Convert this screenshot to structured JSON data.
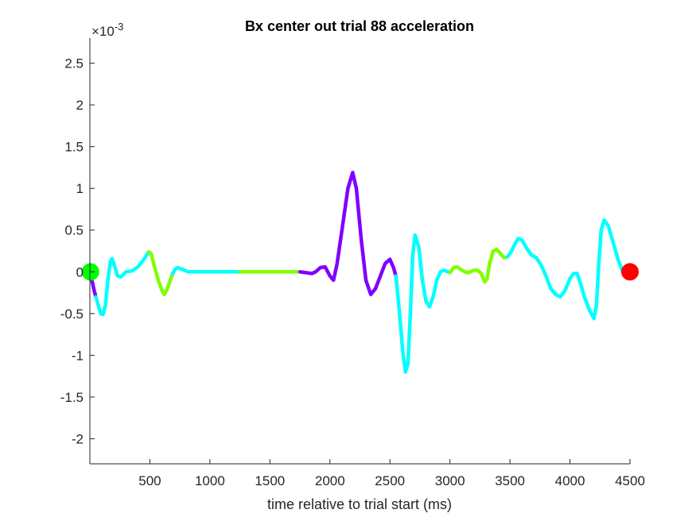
{
  "chart_data": {
    "type": "line",
    "title": "Bx  center out trial 88 acceleration",
    "xlabel": "time relative to trial start (ms)",
    "ylabel": "",
    "y_exponent_base": "×10",
    "y_exponent_power": "-3",
    "xlim": [
      0,
      4500
    ],
    "ylim": [
      -2.3,
      2.8
    ],
    "x_ticks": [
      500,
      1000,
      1500,
      2000,
      2500,
      3000,
      3500,
      4000,
      4500
    ],
    "y_ticks": [
      -2,
      -1.5,
      -1,
      -0.5,
      0,
      0.5,
      1,
      1.5,
      2,
      2.5
    ],
    "y_tick_labels": [
      "-2",
      "-1.5",
      "-1",
      "-0.5",
      "0",
      "0.5",
      "1",
      "1.5",
      "2",
      "2.5"
    ],
    "x_tick_labels": [
      "500",
      "1000",
      "1500",
      "2000",
      "2500",
      "3000",
      "3500",
      "4000",
      "4500"
    ],
    "grid": false,
    "colors": {
      "purple": "#7f00ff",
      "cyan": "#00ffff",
      "green": "#80ff00",
      "start_marker": "#00ff00",
      "end_marker": "#ff0000"
    },
    "series": [
      {
        "color_key": "purple",
        "points": [
          [
            5,
            -0.05
          ],
          [
            20,
            -0.12
          ],
          [
            35,
            -0.22
          ],
          [
            50,
            -0.3
          ]
        ]
      },
      {
        "color_key": "cyan",
        "points": [
          [
            50,
            -0.3
          ],
          [
            70,
            -0.4
          ],
          [
            90,
            -0.5
          ],
          [
            110,
            -0.51
          ],
          [
            130,
            -0.4
          ],
          [
            150,
            -0.1
          ],
          [
            170,
            0.12
          ],
          [
            185,
            0.16
          ],
          [
            200,
            0.1
          ],
          [
            230,
            -0.05
          ],
          [
            260,
            -0.06
          ],
          [
            300,
            0.0
          ],
          [
            350,
            0.01
          ],
          [
            400,
            0.06
          ],
          [
            450,
            0.15
          ],
          [
            490,
            0.24
          ]
        ]
      },
      {
        "color_key": "green",
        "points": [
          [
            490,
            0.24
          ],
          [
            510,
            0.22
          ],
          [
            540,
            0.05
          ],
          [
            570,
            -0.1
          ],
          [
            600,
            -0.22
          ],
          [
            620,
            -0.27
          ],
          [
            640,
            -0.22
          ],
          [
            670,
            -0.1
          ],
          [
            690,
            -0.02
          ]
        ]
      },
      {
        "color_key": "cyan",
        "points": [
          [
            690,
            -0.02
          ],
          [
            710,
            0.03
          ],
          [
            730,
            0.05
          ],
          [
            770,
            0.03
          ],
          [
            820,
            0.0
          ],
          [
            900,
            0.0
          ],
          [
            1000,
            0.0
          ],
          [
            1100,
            0.0
          ],
          [
            1200,
            0.0
          ],
          [
            1250,
            0.0
          ]
        ]
      },
      {
        "color_key": "green",
        "points": [
          [
            1250,
            0.0
          ],
          [
            1400,
            0.0
          ],
          [
            1550,
            0.0
          ],
          [
            1750,
            0.0
          ]
        ]
      },
      {
        "color_key": "purple",
        "points": [
          [
            1750,
            0.0
          ],
          [
            1800,
            -0.01
          ],
          [
            1850,
            -0.02
          ],
          [
            1880,
            0.0
          ],
          [
            1920,
            0.05
          ],
          [
            1960,
            0.06
          ],
          [
            2000,
            -0.05
          ],
          [
            2030,
            -0.1
          ],
          [
            2060,
            0.1
          ],
          [
            2100,
            0.5
          ],
          [
            2150,
            1.0
          ],
          [
            2190,
            1.19
          ],
          [
            2220,
            1.0
          ],
          [
            2260,
            0.4
          ],
          [
            2300,
            -0.1
          ],
          [
            2340,
            -0.27
          ],
          [
            2380,
            -0.2
          ],
          [
            2420,
            -0.05
          ],
          [
            2460,
            0.1
          ],
          [
            2500,
            0.15
          ],
          [
            2530,
            0.05
          ],
          [
            2550,
            -0.05
          ]
        ]
      },
      {
        "color_key": "cyan",
        "points": [
          [
            2550,
            -0.05
          ],
          [
            2580,
            -0.5
          ],
          [
            2610,
            -1.0
          ],
          [
            2630,
            -1.2
          ],
          [
            2650,
            -1.1
          ],
          [
            2670,
            -0.5
          ],
          [
            2690,
            0.2
          ],
          [
            2710,
            0.44
          ],
          [
            2740,
            0.3
          ],
          [
            2770,
            -0.1
          ],
          [
            2800,
            -0.35
          ],
          [
            2830,
            -0.42
          ],
          [
            2860,
            -0.3
          ],
          [
            2890,
            -0.1
          ],
          [
            2920,
            0.0
          ],
          [
            2950,
            0.02
          ],
          [
            3000,
            -0.01
          ]
        ]
      },
      {
        "color_key": "green",
        "points": [
          [
            3000,
            -0.01
          ],
          [
            3030,
            0.05
          ],
          [
            3060,
            0.06
          ],
          [
            3100,
            0.02
          ],
          [
            3140,
            -0.01
          ],
          [
            3170,
            0.0
          ],
          [
            3200,
            0.02
          ],
          [
            3230,
            0.02
          ],
          [
            3260,
            -0.02
          ],
          [
            3290,
            -0.12
          ],
          [
            3310,
            -0.08
          ],
          [
            3330,
            0.1
          ],
          [
            3360,
            0.25
          ],
          [
            3390,
            0.27
          ],
          [
            3420,
            0.22
          ],
          [
            3450,
            0.17
          ],
          [
            3480,
            0.18
          ]
        ]
      },
      {
        "color_key": "cyan",
        "points": [
          [
            3480,
            0.18
          ],
          [
            3510,
            0.24
          ],
          [
            3540,
            0.33
          ],
          [
            3570,
            0.4
          ],
          [
            3600,
            0.38
          ],
          [
            3640,
            0.28
          ],
          [
            3680,
            0.2
          ],
          [
            3720,
            0.17
          ],
          [
            3760,
            0.08
          ],
          [
            3800,
            -0.05
          ],
          [
            3840,
            -0.2
          ],
          [
            3880,
            -0.27
          ],
          [
            3920,
            -0.3
          ],
          [
            3960,
            -0.22
          ],
          [
            4000,
            -0.08
          ],
          [
            4030,
            -0.02
          ],
          [
            4060,
            -0.02
          ],
          [
            4090,
            -0.15
          ],
          [
            4120,
            -0.3
          ],
          [
            4160,
            -0.45
          ],
          [
            4200,
            -0.56
          ],
          [
            4220,
            -0.4
          ],
          [
            4240,
            0.1
          ],
          [
            4260,
            0.5
          ],
          [
            4285,
            0.62
          ],
          [
            4320,
            0.55
          ],
          [
            4360,
            0.35
          ],
          [
            4400,
            0.15
          ],
          [
            4440,
            0.0
          ],
          [
            4470,
            0.0
          ],
          [
            4500,
            0.0
          ]
        ]
      }
    ],
    "markers": [
      {
        "x": 5,
        "y": 0,
        "color_key": "start_marker"
      },
      {
        "x": 4500,
        "y": 0,
        "color_key": "end_marker"
      }
    ]
  }
}
